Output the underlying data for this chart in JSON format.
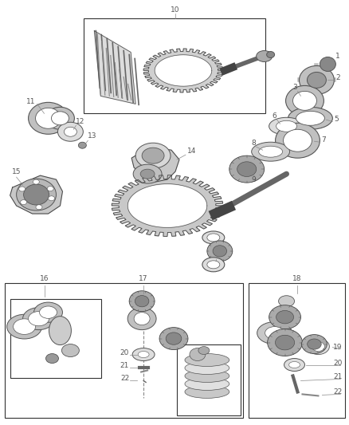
{
  "bg_color": "#ffffff",
  "line_color": "#333333",
  "label_color": "#555555",
  "fs": 6.5,
  "fw": 4.38,
  "fh": 5.33,
  "dpi": 100
}
